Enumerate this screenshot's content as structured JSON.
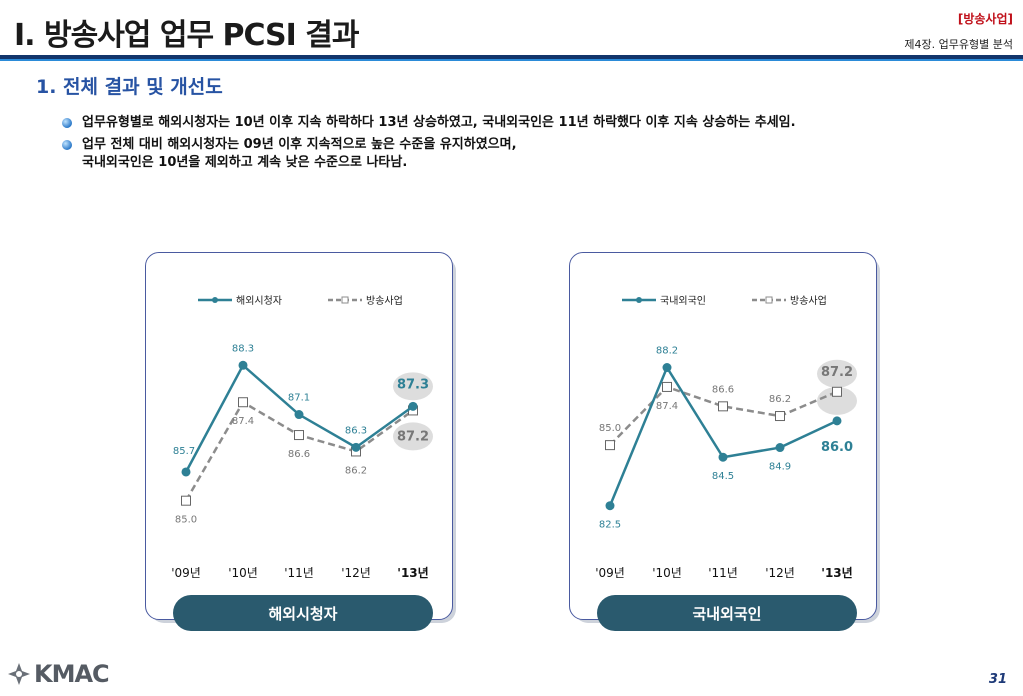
{
  "header": {
    "title": "I. 방송사업 업무 PCSI 결과",
    "section_tag": "[방송사업]",
    "chapter": "제4장. 업무유형별 분석"
  },
  "subtitle": "1. 전체 결과 및 개선도",
  "bullets": [
    "업무유형별로 해외시청자는 10년 이후 지속 하락하다 13년 상승하였고, 국내외국인은 11년 하락했다 이후 지속 상승하는 추세임.",
    "업무 전체 대비 해외시청자는 09년 이후 지속적으로 높은 수준을 유지하였으며,",
    "국내외국인은 10년을 제외하고 계속 낮은 수준으로 나타남."
  ],
  "colors": {
    "primary": "#2e8095",
    "secondary": "#8c8c8c",
    "pill": "#2a5a6e",
    "navy": "#12356b",
    "accent_red": "#c0101a"
  },
  "chart_data": [
    {
      "type": "line",
      "title": "해외시청자",
      "categories": [
        "'09년",
        "'10년",
        "'11년",
        "'12년",
        "'13년"
      ],
      "series": [
        {
          "name": "해외시청자",
          "values": [
            85.7,
            88.3,
            87.1,
            86.3,
            87.3
          ]
        },
        {
          "name": "방송사업",
          "values": [
            85.0,
            87.4,
            86.6,
            86.2,
            87.2
          ]
        }
      ],
      "ylim": [
        84.7,
        88.6
      ],
      "legend": "top"
    },
    {
      "type": "line",
      "title": "국내외국인",
      "categories": [
        "'09년",
        "'10년",
        "'11년",
        "'12년",
        "'13년"
      ],
      "series": [
        {
          "name": "국내외국인",
          "values": [
            82.5,
            88.2,
            84.5,
            84.9,
            86.0
          ]
        },
        {
          "name": "방송사업",
          "values": [
            85.0,
            87.4,
            86.6,
            86.2,
            87.2
          ]
        }
      ],
      "ylim": [
        82.2,
        88.8
      ],
      "legend": "top"
    }
  ],
  "footer": {
    "logo": "KMAC",
    "page_number": "31"
  }
}
